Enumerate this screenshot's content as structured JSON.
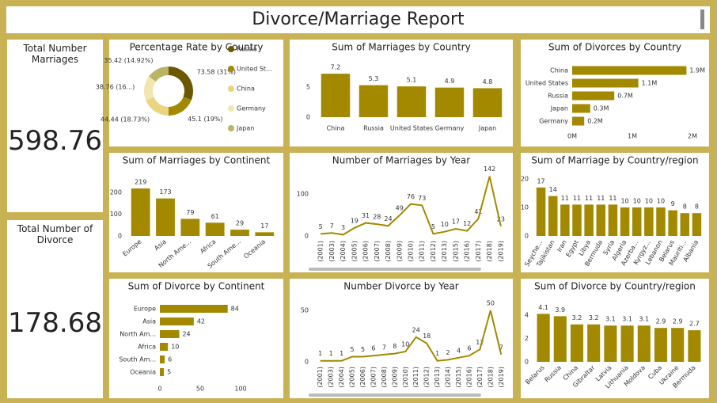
{
  "title": "Divorce/Marriage Report",
  "cards": [
    {
      "label": "Total Number Marriages",
      "value": "598.76"
    },
    {
      "label": "Total Number of Divorce",
      "value": "178.68"
    }
  ],
  "chart_data": [
    {
      "type": "donut",
      "title": "Percentage Rate by Country",
      "categories": [
        "Russia",
        "United St...",
        "China",
        "Germany",
        "Japan"
      ],
      "values": [
        73.58,
        45.1,
        44.44,
        38.76,
        35.42
      ],
      "value_labels": [
        "73.58 (31%)",
        "45.1 (19%)",
        "44.44 (18.73%)",
        "38.76 (16...)",
        "35.42 (14.92%)"
      ],
      "colors": [
        "#6b5800",
        "#a38900",
        "#e9d57e",
        "#f2e6ae",
        "#b9b565"
      ],
      "legend": "right"
    },
    {
      "type": "bar",
      "title": "Sum of Marriages by Country",
      "categories": [
        "China",
        "Russia",
        "United States",
        "Germany",
        "Japan"
      ],
      "values": [
        7.2,
        5.3,
        5.1,
        4.9,
        4.8
      ],
      "color": "#a38900",
      "ylim": [
        0,
        8
      ],
      "yticks": [
        0,
        5
      ]
    },
    {
      "type": "hbar",
      "title": "Sum of Divorces by Country",
      "categories": [
        "China",
        "United States",
        "Russia",
        "Japan",
        "Germany"
      ],
      "values": [
        1900000,
        1100000,
        700000,
        300000,
        200000
      ],
      "value_labels": [
        "1.9M",
        "1.1M",
        "0.7M",
        "0.3M",
        "0.2M"
      ],
      "color": "#a38900",
      "xlim": [
        0,
        2000000
      ],
      "xticks": [
        {
          "value": 0,
          "label": "0M"
        },
        {
          "value": 1000000,
          "label": "1M"
        },
        {
          "value": 2000000,
          "label": "2M"
        }
      ]
    },
    {
      "type": "bar",
      "title": "Sum of Marriages by Continent",
      "categories": [
        "Europe",
        "Asia",
        "North Ame...",
        "Africa",
        "South Ame...",
        "Oceania"
      ],
      "values": [
        219,
        173,
        79,
        61,
        29,
        17
      ],
      "color": "#a38900",
      "ylim": [
        0,
        230
      ],
      "yticks": [
        0,
        100,
        200
      ]
    },
    {
      "type": "line",
      "title": "Number of Marriages by Year",
      "categories": [
        "(2001)",
        "(2003)",
        "(2004)",
        "(2005)",
        "(2006)",
        "(2007)",
        "(2008)",
        "(2009)",
        "(2010)",
        "(2011)",
        "(2012)",
        "(2013)",
        "(2015)",
        "(2016)",
        "(2017)",
        "(2018)",
        "(2019)"
      ],
      "values": [
        5,
        7,
        3,
        19,
        31,
        28,
        24,
        49,
        76,
        73,
        5,
        10,
        17,
        12,
        41,
        142,
        23
      ],
      "color": "#a38900",
      "ylim": [
        0,
        150
      ],
      "yticks": [
        0,
        100
      ]
    },
    {
      "type": "bar",
      "title": "Sum of Marriage by Country/region",
      "categories": [
        "Seyche...",
        "Tajikistan",
        "Iran",
        "Egypt",
        "Libya",
        "Bermuda",
        "Syria",
        "Algeria",
        "Azerba...",
        "Kyrgyz...",
        "Lebanon",
        "Belarus",
        "Mauriti...",
        "Albania"
      ],
      "values": [
        17,
        14,
        11,
        11,
        11,
        11,
        11,
        10,
        10,
        10,
        10,
        9,
        8,
        8
      ],
      "color": "#a38900",
      "ylim": [
        0,
        20
      ],
      "yticks": [
        0,
        10,
        20
      ]
    },
    {
      "type": "hbar",
      "title": "Sum of Divorce by Continent",
      "categories": [
        "Europe",
        "Asia",
        "North Am...",
        "Africa",
        "South Am...",
        "Oceania"
      ],
      "values": [
        84,
        42,
        24,
        10,
        6,
        5
      ],
      "color": "#a38900",
      "xlim": [
        0,
        100
      ],
      "xticks": [
        0,
        50,
        100
      ]
    },
    {
      "type": "line",
      "title": "Number Divorce by Year",
      "categories": [
        "(2001)",
        "(2003)",
        "(2004)",
        "(2005)",
        "(2006)",
        "(2007)",
        "(2008)",
        "(2009)",
        "(2010)",
        "(2011)",
        "(2012)",
        "(2013)",
        "(2014)",
        "(2015)",
        "(2016)",
        "(2017)",
        "(2018)",
        "(2019)"
      ],
      "values": [
        1,
        1,
        1,
        5,
        5,
        6,
        7,
        8,
        10,
        24,
        18,
        1,
        2,
        4,
        6,
        12,
        50,
        7
      ],
      "color": "#a38900",
      "ylim": [
        0,
        55
      ],
      "yticks": [
        0,
        50
      ]
    },
    {
      "type": "bar",
      "title": "Sum of Divorce by Country/region",
      "categories": [
        "Belarus",
        "Russia",
        "China",
        "Gibraltar",
        "Latvia",
        "Lithuania",
        "Moldova",
        "Cuba",
        "Ukraine",
        "Bermuda"
      ],
      "values": [
        4.1,
        3.9,
        3.2,
        3.2,
        3.1,
        3.1,
        3.1,
        2.9,
        2.9,
        2.7
      ],
      "color": "#a38900",
      "ylim": [
        0,
        4.4
      ],
      "yticks": [
        0,
        2,
        4
      ]
    }
  ]
}
